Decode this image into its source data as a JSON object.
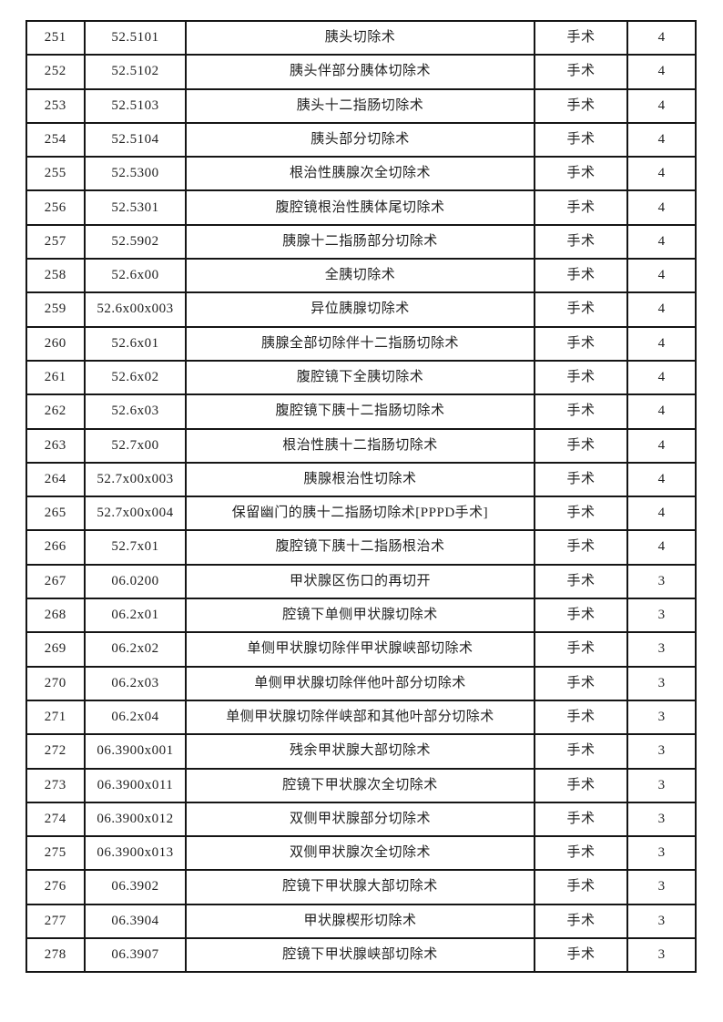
{
  "page": {
    "background_color": "#ffffff",
    "border_color": "#151515",
    "text_color": "#1f1f1f"
  },
  "table": {
    "columns": [
      {
        "key": "index"
      },
      {
        "key": "code"
      },
      {
        "key": "name"
      },
      {
        "key": "category"
      },
      {
        "key": "level"
      }
    ],
    "rows": [
      {
        "index": "251",
        "code": "52.5101",
        "name": "胰头切除术",
        "category": "手术",
        "level": "4"
      },
      {
        "index": "252",
        "code": "52.5102",
        "name": "胰头伴部分胰体切除术",
        "category": "手术",
        "level": "4"
      },
      {
        "index": "253",
        "code": "52.5103",
        "name": "胰头十二指肠切除术",
        "category": "手术",
        "level": "4"
      },
      {
        "index": "254",
        "code": "52.5104",
        "name": "胰头部分切除术",
        "category": "手术",
        "level": "4"
      },
      {
        "index": "255",
        "code": "52.5300",
        "name": "根治性胰腺次全切除术",
        "category": "手术",
        "level": "4"
      },
      {
        "index": "256",
        "code": "52.5301",
        "name": "腹腔镜根治性胰体尾切除术",
        "category": "手术",
        "level": "4"
      },
      {
        "index": "257",
        "code": "52.5902",
        "name": "胰腺十二指肠部分切除术",
        "category": "手术",
        "level": "4"
      },
      {
        "index": "258",
        "code": "52.6x00",
        "name": "全胰切除术",
        "category": "手术",
        "level": "4"
      },
      {
        "index": "259",
        "code": "52.6x00x003",
        "name": "异位胰腺切除术",
        "category": "手术",
        "level": "4"
      },
      {
        "index": "260",
        "code": "52.6x01",
        "name": "胰腺全部切除伴十二指肠切除术",
        "category": "手术",
        "level": "4"
      },
      {
        "index": "261",
        "code": "52.6x02",
        "name": "腹腔镜下全胰切除术",
        "category": "手术",
        "level": "4"
      },
      {
        "index": "262",
        "code": "52.6x03",
        "name": "腹腔镜下胰十二指肠切除术",
        "category": "手术",
        "level": "4"
      },
      {
        "index": "263",
        "code": "52.7x00",
        "name": "根治性胰十二指肠切除术",
        "category": "手术",
        "level": "4"
      },
      {
        "index": "264",
        "code": "52.7x00x003",
        "name": "胰腺根治性切除术",
        "category": "手术",
        "level": "4"
      },
      {
        "index": "265",
        "code": "52.7x00x004",
        "name": "保留幽门的胰十二指肠切除术[PPPD手术]",
        "category": "手术",
        "level": "4"
      },
      {
        "index": "266",
        "code": "52.7x01",
        "name": "腹腔镜下胰十二指肠根治术",
        "category": "手术",
        "level": "4"
      },
      {
        "index": "267",
        "code": "06.0200",
        "name": "甲状腺区伤口的再切开",
        "category": "手术",
        "level": "3"
      },
      {
        "index": "268",
        "code": "06.2x01",
        "name": "腔镜下单侧甲状腺切除术",
        "category": "手术",
        "level": "3"
      },
      {
        "index": "269",
        "code": "06.2x02",
        "name": "单侧甲状腺切除伴甲状腺峡部切除术",
        "category": "手术",
        "level": "3"
      },
      {
        "index": "270",
        "code": "06.2x03",
        "name": "单侧甲状腺切除伴他叶部分切除术",
        "category": "手术",
        "level": "3"
      },
      {
        "index": "271",
        "code": "06.2x04",
        "name": "单侧甲状腺切除伴峡部和其他叶部分切除术",
        "category": "手术",
        "level": "3"
      },
      {
        "index": "272",
        "code": "06.3900x001",
        "name": "残余甲状腺大部切除术",
        "category": "手术",
        "level": "3"
      },
      {
        "index": "273",
        "code": "06.3900x011",
        "name": "腔镜下甲状腺次全切除术",
        "category": "手术",
        "level": "3"
      },
      {
        "index": "274",
        "code": "06.3900x012",
        "name": "双侧甲状腺部分切除术",
        "category": "手术",
        "level": "3"
      },
      {
        "index": "275",
        "code": "06.3900x013",
        "name": "双侧甲状腺次全切除术",
        "category": "手术",
        "level": "3"
      },
      {
        "index": "276",
        "code": "06.3902",
        "name": "腔镜下甲状腺大部切除术",
        "category": "手术",
        "level": "3"
      },
      {
        "index": "277",
        "code": "06.3904",
        "name": "甲状腺楔形切除术",
        "category": "手术",
        "level": "3"
      },
      {
        "index": "278",
        "code": "06.3907",
        "name": "腔镜下甲状腺峡部切除术",
        "category": "手术",
        "level": "3"
      }
    ]
  }
}
